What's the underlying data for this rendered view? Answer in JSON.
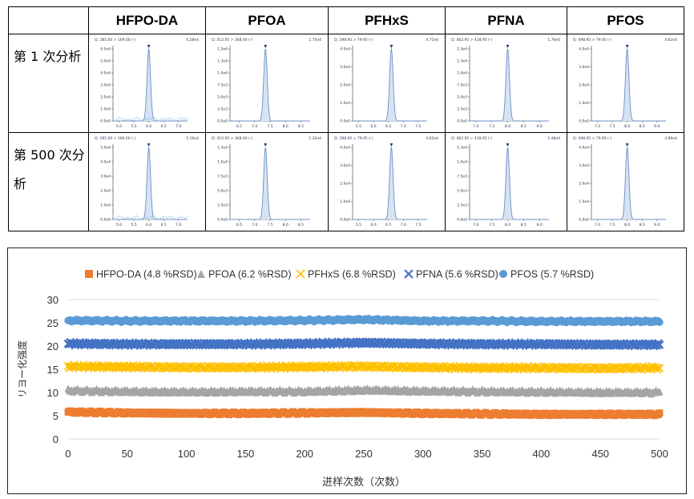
{
  "table": {
    "columns": [
      "HFPO-DA",
      "PFOA",
      "PFHxS",
      "PFNA",
      "PFOS"
    ],
    "rows": [
      {
        "label": "第 1 次分析",
        "cells": [
          {
            "header": "Q: 285.00 > 169.00 (-)",
            "max": "6.28e4",
            "x_ticks": [
              "5.0",
              "5.5",
              "6.0",
              "6.5",
              "7.0"
            ],
            "y_ticks": [
              "0.0e0",
              "1.0e4",
              "2.0e4",
              "3.0e4",
              "4.0e4",
              "5.0e4",
              "6.0e4"
            ],
            "peak_rt": 6.0,
            "x_range": [
              4.8,
              7.3
            ],
            "noise": true
          },
          {
            "header": "Q: 412.95 > 368.00 (-)",
            "max": "1.75e4",
            "x_ticks": [
              "6.5",
              "7.0",
              "7.5",
              "8.0",
              "8.5"
            ],
            "y_ticks": [
              "0.0e0",
              "2.5e3",
              "5.0e3",
              "7.5e3",
              "1.0e4",
              "1.3e4",
              "1.5e4"
            ],
            "peak_rt": 7.35,
            "x_range": [
              6.2,
              8.8
            ],
            "noise": false
          },
          {
            "header": "Q: 398.95 > 79.95 (-)",
            "max": "4.71e4",
            "x_ticks": [
              "5.5",
              "6.0",
              "6.5",
              "7.0",
              "7.5"
            ],
            "y_ticks": [
              "0.0e0",
              "1.0e4",
              "2.0e4",
              "3.0e4",
              "4.0e4"
            ],
            "peak_rt": 6.6,
            "x_range": [
              5.3,
              7.8
            ],
            "noise": false
          },
          {
            "header": "Q: 462.95 > 418.95 (-)",
            "max": "1.76e4",
            "x_ticks": [
              "7.0",
              "7.5",
              "8.0",
              "8.5",
              "9.0"
            ],
            "y_ticks": [
              "0.0e0",
              "2.5e3",
              "5.0e3",
              "7.5e3",
              "1.0e4",
              "1.3e4",
              "1.5e4"
            ],
            "peak_rt": 8.0,
            "x_range": [
              6.8,
              9.3
            ],
            "noise": false
          },
          {
            "header": "Q: 498.95 > 79.95 (-)",
            "max": "4.62e4",
            "x_ticks": [
              "7.0",
              "7.5",
              "8.0",
              "8.5",
              "9.0"
            ],
            "y_ticks": [
              "0.0e0",
              "1.0e4",
              "2.0e4",
              "3.0e4",
              "4.0e4"
            ],
            "peak_rt": 8.0,
            "x_range": [
              6.8,
              9.3
            ],
            "noise": false
          }
        ]
      },
      {
        "label": "第 500 次分析",
        "cells": [
          {
            "header": "Q: 285.00 > 169.00 (-)",
            "max": "5.16e4",
            "x_ticks": [
              "5.0",
              "5.5",
              "6.0",
              "6.5",
              "7.0"
            ],
            "y_ticks": [
              "0.0e0",
              "1.0e4",
              "2.0e4",
              "3.0e4",
              "4.0e4",
              "5.0e4"
            ],
            "peak_rt": 6.0,
            "x_range": [
              4.8,
              7.3
            ],
            "noise": true
          },
          {
            "header": "Q: 412.95 > 368.00 (-)",
            "max": "1.32e4",
            "x_ticks": [
              "6.5",
              "7.0",
              "7.5",
              "8.0",
              "8.5"
            ],
            "y_ticks": [
              "0.0e0",
              "2.5e3",
              "5.0e3",
              "7.5e3",
              "1.0e4",
              "1.3e4"
            ],
            "peak_rt": 7.35,
            "x_range": [
              6.2,
              8.8
            ],
            "noise": false
          },
          {
            "header": "Q: 398.95 > 79.95 (-)",
            "max": "4.62e4",
            "x_ticks": [
              "5.5",
              "6.0",
              "6.5",
              "7.0",
              "7.5"
            ],
            "y_ticks": [
              "0.0e0",
              "1.0e4",
              "2.0e4",
              "3.0e4",
              "4.0e4"
            ],
            "peak_rt": 6.6,
            "x_range": [
              5.3,
              7.8
            ],
            "noise": false
          },
          {
            "header": "Q: 462.95 > 418.95 (-)",
            "max": "1.48e4",
            "x_ticks": [
              "7.0",
              "7.5",
              "8.0",
              "8.5",
              "9.0"
            ],
            "y_ticks": [
              "0.0e0",
              "2.5e3",
              "5.0e3",
              "7.5e3",
              "1.0e4",
              "1.3e4"
            ],
            "peak_rt": 8.0,
            "x_range": [
              6.8,
              9.3
            ],
            "noise": false
          },
          {
            "header": "Q: 498.95 > 79.95 (-)",
            "max": "4.89e4",
            "x_ticks": [
              "7.0",
              "7.5",
              "8.0",
              "8.5",
              "9.0"
            ],
            "y_ticks": [
              "0.0e0",
              "1.0e4",
              "2.0e4",
              "3.0e4",
              "4.0e4"
            ],
            "peak_rt": 8.0,
            "x_range": [
              6.8,
              9.3
            ],
            "noise": false
          }
        ]
      }
    ],
    "colors": {
      "trace": "#6b8fc4",
      "fill": "#d6e3f2",
      "noise": "#9cc6e6",
      "axis": "#333333",
      "marker": "#1f3f7a"
    }
  },
  "chart_data": {
    "type": "line",
    "title": "",
    "xlabel": "进样次数（次数）",
    "ylabel": "リヨー化强度",
    "xlim": [
      0,
      500
    ],
    "ylim": [
      0,
      30
    ],
    "x_ticks": [
      0,
      50,
      100,
      150,
      200,
      250,
      300,
      350,
      400,
      450,
      500
    ],
    "y_ticks": [
      0,
      5,
      10,
      15,
      20,
      25,
      30
    ],
    "grid": true,
    "legend_position": "top",
    "series": [
      {
        "name": "HFPO-DA (4.8 %RSD)",
        "marker": "square",
        "color": "#ed7d31",
        "mean": 5.5,
        "band": 0.6,
        "values_at_ticks": [
          5.8,
          5.6,
          5.5,
          5.5,
          5.6,
          5.7,
          5.5,
          5.4,
          5.3,
          5.3,
          5.3
        ]
      },
      {
        "name": "PFOA (6.2 %RSD)",
        "marker": "triangle",
        "color": "#a5a5a5",
        "mean": 10.3,
        "band": 0.8,
        "values_at_ticks": [
          10.5,
          10.3,
          10.2,
          10.3,
          10.3,
          10.6,
          10.4,
          10.3,
          10.2,
          10.1,
          10.1
        ]
      },
      {
        "name": "PFHxS (6.8 %RSD)",
        "marker": "x",
        "color": "#ffc000",
        "mean": 15.4,
        "band": 0.8,
        "values_at_ticks": [
          15.6,
          15.5,
          15.4,
          15.4,
          15.5,
          15.6,
          15.4,
          15.3,
          15.3,
          15.2,
          15.3
        ]
      },
      {
        "name": "PFNA (5.6 %RSD)",
        "marker": "cross",
        "color": "#4472c4",
        "mean": 20.4,
        "band": 0.7,
        "values_at_ticks": [
          20.5,
          20.4,
          20.4,
          20.4,
          20.5,
          20.7,
          20.5,
          20.4,
          20.4,
          20.3,
          20.3
        ]
      },
      {
        "name": "PFOS (5.7 %RSD)",
        "marker": "circle",
        "color": "#5b9bd5",
        "mean": 25.4,
        "band": 0.6,
        "values_at_ticks": [
          25.5,
          25.4,
          25.4,
          25.4,
          25.5,
          25.7,
          25.4,
          25.4,
          25.3,
          25.3,
          25.3
        ]
      }
    ]
  }
}
